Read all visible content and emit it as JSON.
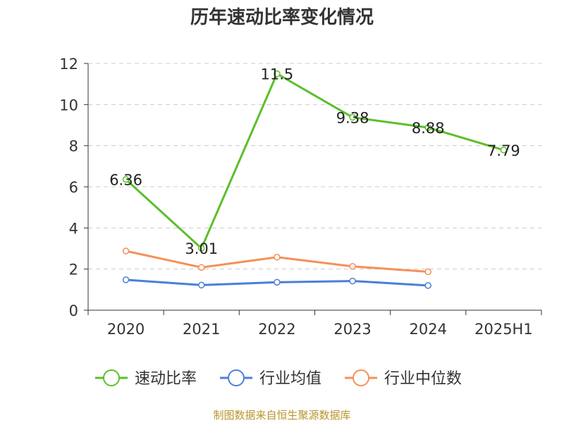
{
  "title": "历年速动比率变化情况",
  "source": "制图数据来自恒生聚源数据库",
  "colors": {
    "series1": "#5cbf2a",
    "series2": "#4a7fd8",
    "series3": "#f5905a",
    "grid": "#cccccc",
    "axis": "#333333"
  },
  "chart_data": {
    "type": "line",
    "categories": [
      "2020",
      "2021",
      "2022",
      "2023",
      "2024",
      "2025H1"
    ],
    "ylim": [
      0,
      12
    ],
    "yticks": [
      0,
      2,
      4,
      6,
      8,
      10,
      12
    ],
    "grid": true,
    "legend_position": "bottom",
    "series": [
      {
        "name": "速动比率",
        "values": [
          6.36,
          3.01,
          11.5,
          9.38,
          8.88,
          7.79
        ],
        "labels": [
          "6.36",
          "3.01",
          "11.5",
          "9.38",
          "8.88",
          "7.79"
        ]
      },
      {
        "name": "行业均值",
        "values": [
          1.48,
          1.22,
          1.36,
          1.42,
          1.2,
          null
        ]
      },
      {
        "name": "行业中位数",
        "values": [
          2.88,
          2.08,
          2.58,
          2.13,
          1.87,
          null
        ]
      }
    ]
  }
}
